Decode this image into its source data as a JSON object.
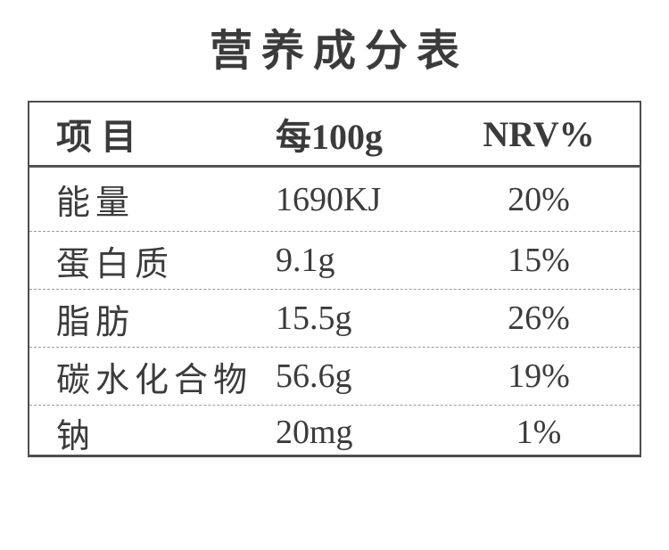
{
  "title": "营养成分表",
  "table": {
    "headers": {
      "item": "项目",
      "per100g": "每100g",
      "nrv": "NRV%"
    },
    "rows": [
      {
        "item": "能量",
        "per100g": "1690KJ",
        "nrv": "20%"
      },
      {
        "item": "蛋白质",
        "per100g": "9.1g",
        "nrv": "15%"
      },
      {
        "item": "脂肪",
        "per100g": "15.5g",
        "nrv": "26%"
      },
      {
        "item": "碳水化合物",
        "per100g": "56.6g",
        "nrv": "19%"
      },
      {
        "item": "钠",
        "per100g": "20mg",
        "nrv": "1%"
      }
    ]
  },
  "colors": {
    "background": "#ffffff",
    "text": "#3b3b3b",
    "outer_border": "#4e4e4e",
    "header_separator": "#535353",
    "row_separator": "#9a9a9a"
  }
}
